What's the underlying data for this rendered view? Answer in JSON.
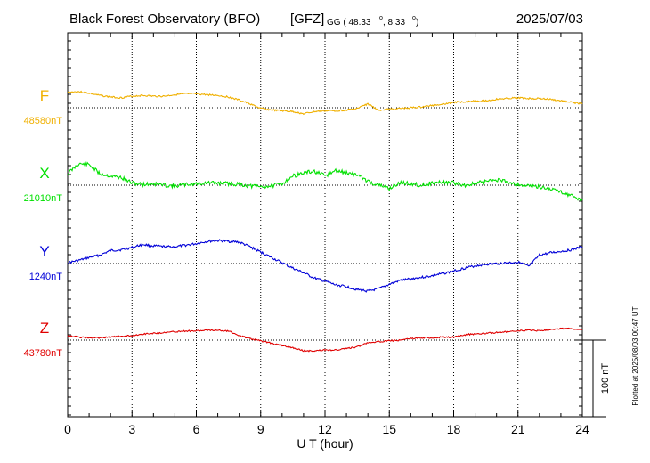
{
  "header": {
    "title": "Black Forest Observatory (BFO)",
    "source": "[GFZ]",
    "coords_prefix": "GG ( 48.33",
    "coords_mid": ",   8.33",
    "coords_suffix": ")",
    "date": "2025/07/03"
  },
  "footer": {
    "plotted": "Plotted at 2025/08/03 00:47 UT"
  },
  "colors": {
    "F": "#f0b000",
    "X": "#00e000",
    "Y": "#0000d8",
    "Z": "#e00000",
    "grid": "#000000"
  },
  "chart_data": {
    "type": "line",
    "xlabel": "U T (hour)",
    "xlim": [
      0,
      24
    ],
    "x_ticks": [
      0,
      3,
      6,
      9,
      12,
      15,
      18,
      21,
      24
    ],
    "x_tick_labels": [
      "0",
      "3",
      "6",
      "9",
      "12",
      "15",
      "18",
      "21",
      "24"
    ],
    "scale_bar": {
      "label": "100 nT",
      "value_nT": 100
    },
    "grid": true,
    "series": [
      {
        "key": "F",
        "name": "F",
        "baseline_label": "48580nT",
        "baseline_nT": 48580,
        "x": [
          0,
          0.5,
          1,
          1.5,
          2,
          2.5,
          3,
          3.5,
          4,
          4.5,
          5,
          5.5,
          6,
          6.5,
          7,
          7.5,
          8,
          8.5,
          9,
          9.5,
          10,
          10.5,
          11,
          11.5,
          12,
          12.5,
          13,
          13.5,
          14,
          14.5,
          15,
          15.5,
          16,
          16.5,
          17,
          17.5,
          18,
          18.5,
          19,
          19.5,
          20,
          20.5,
          21,
          21.5,
          22,
          22.5,
          23,
          23.5,
          24
        ],
        "values": [
          48600,
          48601,
          48599,
          48596,
          48594,
          48593,
          48595,
          48596,
          48595,
          48595,
          48597,
          48598,
          48598,
          48597,
          48596,
          48594,
          48590,
          48585,
          48579,
          48577,
          48576,
          48575,
          48572,
          48575,
          48576,
          48576,
          48577,
          48579,
          48585,
          48577,
          48578,
          48579,
          48580,
          48581,
          48583,
          48585,
          48587,
          48588,
          48589,
          48589,
          48591,
          48592,
          48593,
          48592,
          48592,
          48591,
          48589,
          48587,
          48585
        ]
      },
      {
        "key": "X",
        "name": "X",
        "baseline_label": "21010nT",
        "baseline_nT": 21010,
        "x": [
          0,
          0.5,
          1,
          1.5,
          2,
          2.5,
          3,
          3.5,
          4,
          4.5,
          5,
          5.5,
          6,
          6.5,
          7,
          7.5,
          8,
          8.5,
          9,
          9.5,
          10,
          10.5,
          11,
          11.5,
          12,
          12.5,
          13,
          13.5,
          14,
          14.5,
          15,
          15.5,
          16,
          16.5,
          17,
          17.5,
          18,
          18.5,
          19,
          19.5,
          20,
          20.5,
          21,
          21.5,
          22,
          22.5,
          23,
          23.5,
          24
        ],
        "values": [
          21025,
          21038,
          21037,
          21025,
          21022,
          21020,
          21013,
          21011,
          21012,
          21010,
          21009,
          21011,
          21012,
          21013,
          21013,
          21012,
          21011,
          21009,
          21008,
          21009,
          21012,
          21022,
          21026,
          21028,
          21022,
          21029,
          21026,
          21024,
          21015,
          21010,
          21006,
          21013,
          21012,
          21010,
          21013,
          21014,
          21013,
          21010,
          21012,
          21015,
          21017,
          21015,
          21011,
          21009,
          21008,
          21005,
          21002,
          20996,
          20990
        ]
      },
      {
        "key": "Y",
        "name": "Y",
        "baseline_label": "1240nT",
        "baseline_nT": 1240,
        "x": [
          0,
          0.5,
          1,
          1.5,
          2,
          2.5,
          3,
          3.5,
          4,
          4.5,
          5,
          5.5,
          6,
          6.5,
          7,
          7.5,
          8,
          8.5,
          9,
          9.5,
          10,
          10.5,
          11,
          11.5,
          12,
          12.5,
          13,
          13.5,
          14,
          14.5,
          15,
          15.5,
          16,
          16.5,
          17,
          17.5,
          18,
          18.5,
          19,
          19.5,
          20,
          20.5,
          21,
          21.5,
          22,
          22.5,
          23,
          23.5,
          24
        ],
        "values": [
          1241,
          1244,
          1248,
          1251,
          1257,
          1258,
          1261,
          1265,
          1263,
          1262,
          1262,
          1264,
          1266,
          1269,
          1270,
          1269,
          1268,
          1262,
          1255,
          1248,
          1241,
          1234,
          1228,
          1221,
          1217,
          1212,
          1210,
          1206,
          1204,
          1207,
          1213,
          1218,
          1220,
          1222,
          1224,
          1227,
          1230,
          1234,
          1237,
          1239,
          1240,
          1241,
          1242,
          1236,
          1251,
          1254,
          1256,
          1258,
          1262
        ]
      },
      {
        "key": "Z",
        "name": "Z",
        "baseline_label": "43780nT",
        "baseline_nT": 43780,
        "x": [
          0,
          0.5,
          1,
          1.5,
          2,
          2.5,
          3,
          3.5,
          4,
          4.5,
          5,
          5.5,
          6,
          6.5,
          7,
          7.5,
          8,
          8.5,
          9,
          9.5,
          10,
          10.5,
          11,
          11.5,
          12,
          12.5,
          13,
          13.5,
          14,
          14.5,
          15,
          15.5,
          16,
          16.5,
          17,
          17.5,
          18,
          18.5,
          19,
          19.5,
          20,
          20.5,
          21,
          21.5,
          22,
          22.5,
          23,
          23.5,
          24
        ],
        "values": [
          43786,
          43784,
          43783,
          43783,
          43784,
          43785,
          43786,
          43788,
          43789,
          43790,
          43791,
          43792,
          43792,
          43793,
          43793,
          43792,
          43786,
          43782,
          43779,
          43776,
          43773,
          43770,
          43766,
          43766,
          43767,
          43767,
          43769,
          43771,
          43777,
          43778,
          43779,
          43780,
          43782,
          43783,
          43783,
          43784,
          43784,
          43787,
          43788,
          43789,
          43790,
          43791,
          43792,
          43793,
          43792,
          43794,
          43795,
          43795,
          43794
        ]
      }
    ]
  }
}
